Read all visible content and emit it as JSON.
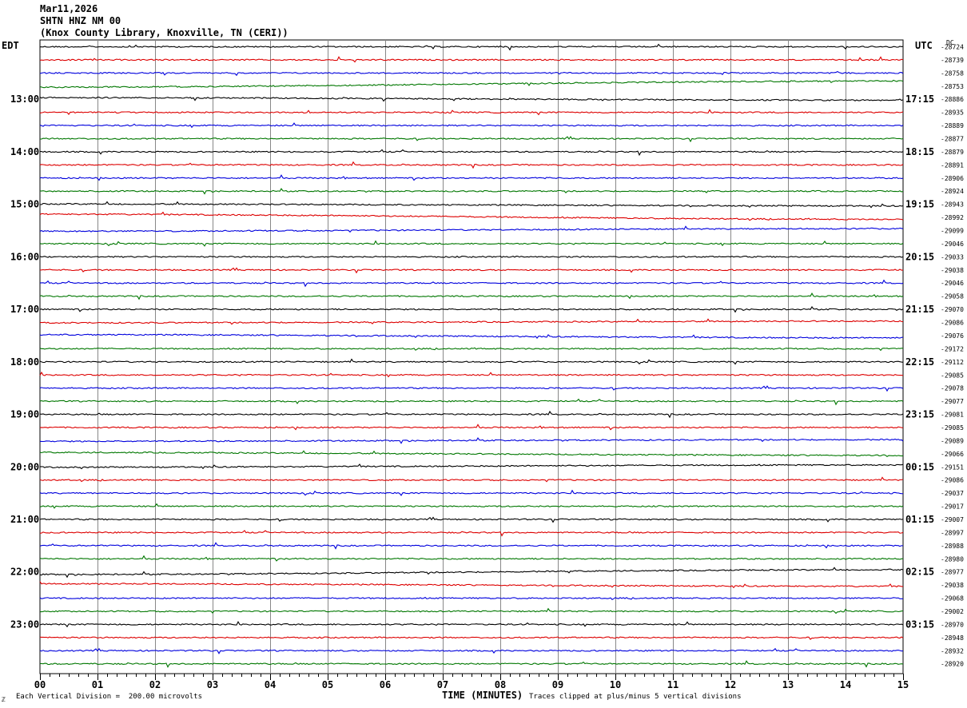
{
  "header": {
    "date": "Mar11,2026",
    "station": "SHTN HNZ NM 00",
    "location": "(Knox County Library, Knoxville, TN (CERI))"
  },
  "left_zone": "EDT",
  "right_zone": "UTC",
  "dc_label": "DC",
  "footer": {
    "scale_note": "Each Vertical Division =  200.00 microvolts",
    "clip_note": "Traces clipped at plus/minus 5 vertical divisions",
    "logo": "ℤ"
  },
  "chart_data": {
    "type": "line",
    "xlabel": "TIME (MINUTES)",
    "x_ticks": [
      "00",
      "01",
      "02",
      "03",
      "04",
      "05",
      "06",
      "07",
      "08",
      "09",
      "10",
      "11",
      "12",
      "13",
      "14",
      "15"
    ],
    "xlim": [
      0,
      15
    ],
    "minutes_per_line": 15,
    "line_colors": [
      "#000000",
      "#dd0000",
      "#0000dd",
      "#007700"
    ],
    "left_hour_labels": [
      "13:00",
      "14:00",
      "15:00",
      "16:00",
      "17:00",
      "18:00",
      "19:00",
      "20:00",
      "21:00",
      "22:00",
      "23:00"
    ],
    "right_hour_labels": [
      "17:15",
      "18:15",
      "19:15",
      "20:15",
      "21:15",
      "22:15",
      "23:15",
      "00:15",
      "01:15",
      "02:15",
      "03:15"
    ],
    "dc_offsets": [
      "-28724",
      "-28739",
      "-28758",
      "-28753",
      "-28886",
      "-28935",
      "-28889",
      "-28877",
      "-28879",
      "-28891",
      "-28906",
      "-28924",
      "-28943",
      "-28992",
      "-29099",
      "-29046",
      "-29033",
      "-29038",
      "-29046",
      "-29058",
      "-29070",
      "-29086",
      "-29076",
      "-29172",
      "-29112",
      "-29085",
      "-29078",
      "-29077",
      "-29081",
      "-29085",
      "-29089",
      "-29066",
      "-29151",
      "-29086",
      "-29037",
      "-29017",
      "-29007",
      "-28997",
      "-28988",
      "-28980",
      "-28977",
      "-29038",
      "-29068",
      "-29002",
      "-28970",
      "-28948",
      "-28932",
      "-28920"
    ],
    "scale": "200.00 microvolts per vertical division",
    "clip": "plus/minus 5 vertical divisions",
    "drift": [
      {
        "line": 3,
        "start": -0.3,
        "end": 1.6
      },
      {
        "line": 4,
        "start": 0.5,
        "end": -0.3
      },
      {
        "line": 12,
        "start": 0.1,
        "end": -0.5
      },
      {
        "line": 13,
        "start": 1.0,
        "end": -0.6
      },
      {
        "line": 14,
        "start": -0.2,
        "end": 0.6
      },
      {
        "line": 21,
        "start": -0.1,
        "end": 0.4
      },
      {
        "line": 22,
        "start": 0.3,
        "end": -0.7
      },
      {
        "line": 30,
        "start": -0.2,
        "end": 0.3
      },
      {
        "line": 31,
        "start": 0.4,
        "end": -0.5
      },
      {
        "line": 32,
        "start": -0.1,
        "end": 0.6
      },
      {
        "line": 40,
        "start": -0.8,
        "end": 0.7
      },
      {
        "line": 41,
        "start": 0.4,
        "end": -0.4
      }
    ]
  }
}
